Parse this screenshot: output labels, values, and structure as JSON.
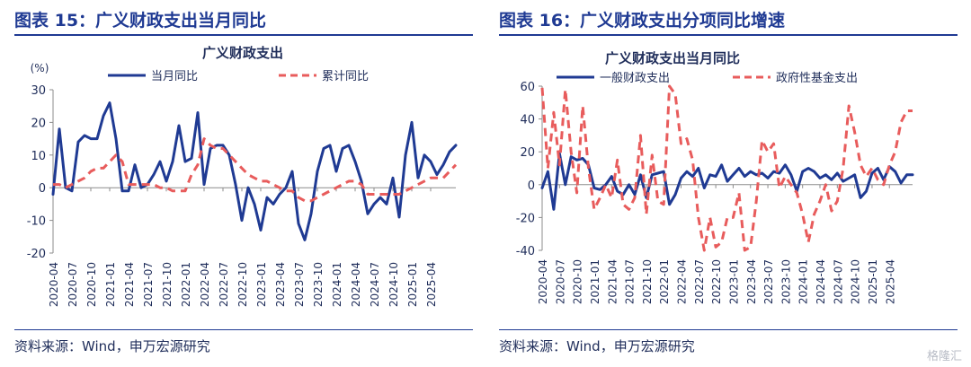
{
  "left_panel": {
    "heading": "图表 15：广义财政支出当月同比",
    "source": "资料来源：Wind，申万宏源研究"
  },
  "right_panel": {
    "heading": "图表 16：广义财政支出分项同比增速",
    "source": "资料来源：Wind，申万宏源研究"
  },
  "watermark": "格隆汇",
  "colors": {
    "navy": "#1f3a93",
    "red": "#e85c5c",
    "axis": "#8c8c8c",
    "text": "#1f2d5a"
  },
  "chart_data": [
    {
      "type": "line",
      "title": "广义财政支出",
      "yunit": "(%)",
      "ylim": [
        -20,
        30
      ],
      "yticks": [
        -20,
        -10,
        0,
        10,
        20,
        30
      ],
      "xticks": [
        "2020-04",
        "2020-07",
        "2020-10",
        "2021-01",
        "2021-04",
        "2021-07",
        "2021-10",
        "2022-01",
        "2022-04",
        "2022-07",
        "2022-10",
        "2023-01",
        "2023-04",
        "2023-07",
        "2023-10",
        "2024-01",
        "2024-04",
        "2024-07",
        "2024-10",
        "2025-01",
        "2025-04"
      ],
      "legend_position": "top",
      "grid": false,
      "series": [
        {
          "name": "当月同比",
          "style": "solid",
          "color": "#1f3a93",
          "values": [
            -2,
            18,
            0,
            -1,
            14,
            16,
            15,
            15,
            22,
            26,
            15,
            -1,
            -1,
            7,
            0,
            1,
            4,
            8,
            2,
            8,
            19,
            8,
            9,
            23,
            1,
            12,
            13,
            13,
            10,
            1,
            -10,
            0,
            -5,
            -13,
            -3,
            -5,
            -2,
            0,
            5,
            -11,
            -16,
            -8,
            5,
            12,
            13,
            5,
            12,
            13,
            8,
            2,
            -8,
            -5,
            -3,
            -5,
            3,
            -9,
            10,
            20,
            3,
            10,
            8,
            4,
            7,
            11,
            13
          ]
        },
        {
          "name": "累计同比",
          "style": "dashed",
          "color": "#e85c5c",
          "values": [
            1,
            1,
            0,
            1,
            2,
            3,
            5,
            6,
            6,
            8,
            10,
            8,
            1,
            1,
            1,
            1,
            1,
            0,
            0,
            -1,
            -1,
            -1,
            4,
            7,
            15,
            13,
            12,
            12,
            10,
            8,
            6,
            4,
            3,
            2,
            2,
            1,
            0,
            -1,
            -1,
            -3,
            -4,
            -4,
            -3,
            -2,
            -1,
            0,
            1,
            2,
            2,
            1,
            -2,
            -2,
            -2,
            -2,
            -2,
            -2,
            -1,
            0,
            1,
            2,
            3,
            3,
            3,
            5,
            7
          ]
        }
      ]
    },
    {
      "type": "line",
      "title": "广义财政支出当月同比",
      "ylim": [
        -40,
        60
      ],
      "yticks": [
        -40,
        -20,
        0,
        20,
        40,
        60
      ],
      "xticks": [
        "2020-04",
        "2020-07",
        "2020-10",
        "2021-01",
        "2021-04",
        "2021-07",
        "2021-10",
        "2022-01",
        "2022-04",
        "2022-07",
        "2022-10",
        "2023-01",
        "2023-04",
        "2023-07",
        "2023-10",
        "2024-01",
        "2024-04",
        "2024-07",
        "2024-10",
        "2025-01",
        "2025-04"
      ],
      "legend_position": "top",
      "grid": false,
      "series": [
        {
          "name": "一般财政支出",
          "style": "solid",
          "color": "#1f3a93",
          "values": [
            -2,
            8,
            -15,
            19,
            0,
            17,
            15,
            16,
            12,
            -2,
            -3,
            0,
            5,
            -4,
            -6,
            0,
            -6,
            6,
            -8,
            6,
            7,
            8,
            -12,
            -6,
            4,
            8,
            5,
            10,
            -2,
            6,
            5,
            12,
            2,
            6,
            10,
            5,
            8,
            6,
            7,
            4,
            8,
            7,
            12,
            6,
            -4,
            8,
            10,
            8,
            4,
            6,
            3,
            7,
            2,
            4,
            6,
            -8,
            -4,
            7,
            10,
            3,
            11,
            8,
            1,
            6,
            6
          ]
        },
        {
          "name": "政府性基金支出",
          "style": "dashed",
          "color": "#e85c5c",
          "values": [
            59,
            10,
            44,
            12,
            58,
            20,
            -5,
            48,
            10,
            -15,
            -8,
            0,
            -8,
            15,
            -12,
            -15,
            -8,
            30,
            -18,
            18,
            -10,
            -12,
            60,
            55,
            25,
            28,
            15,
            -20,
            -40,
            -20,
            -38,
            -35,
            -20,
            -20,
            -5,
            -40,
            -38,
            -10,
            27,
            20,
            25,
            -2,
            5,
            0,
            -5,
            -18,
            -35,
            -18,
            -10,
            0,
            -16,
            -10,
            10,
            48,
            32,
            12,
            5,
            10,
            3,
            0,
            12,
            20,
            38,
            45,
            45
          ]
        }
      ]
    }
  ]
}
